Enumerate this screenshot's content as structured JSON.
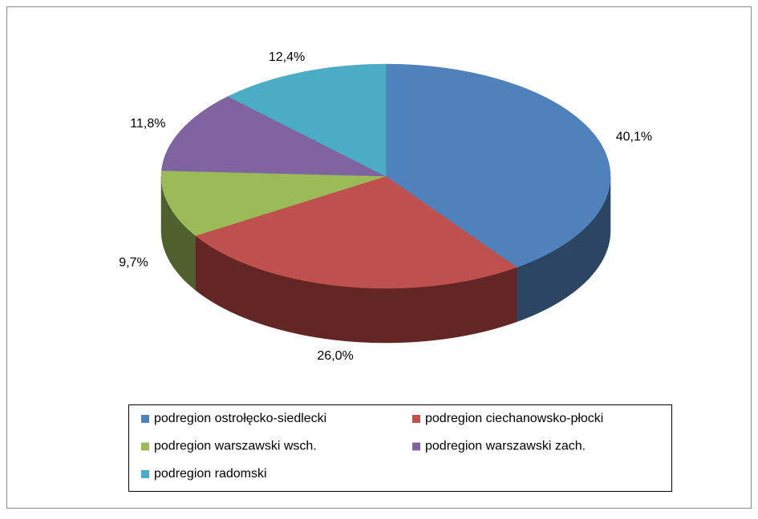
{
  "chart_data": {
    "type": "pie",
    "categories": [
      "podregion ostrołęcko-siedlecki",
      "podregion ciechanowsko-płocki",
      "podregion warszawski wsch.",
      "podregion warszawski zach.",
      "podregion radomski"
    ],
    "values": [
      40.1,
      26.0,
      9.7,
      11.8,
      12.4
    ],
    "value_labels": [
      "40,1%",
      "26,0%",
      "9,7%",
      "11,8%",
      "12,4%"
    ],
    "colors": [
      "#4f81bd",
      "#c0504d",
      "#9bbb59",
      "#8064a2",
      "#4bacc6"
    ],
    "side_colors": [
      "#2c4563",
      "#632624",
      "#4f602e",
      "#423354",
      "#27596a"
    ],
    "legend": "bottom"
  }
}
